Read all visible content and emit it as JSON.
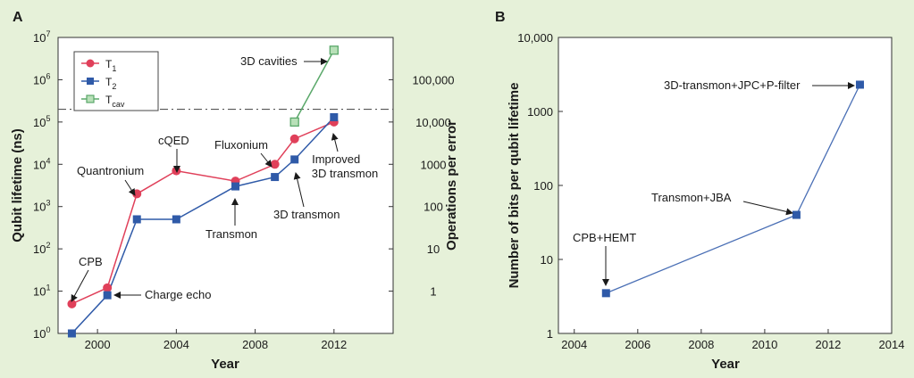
{
  "chart_data": [
    {
      "panel": "A",
      "type": "line",
      "xlabel": "Year",
      "ylabel": "Qubit lifetime (ns)",
      "ylabel_right": "Operations per error",
      "yscale": "log",
      "xlim": [
        1998,
        2015
      ],
      "ylim": [
        1,
        10000000
      ],
      "x_ticks": [
        "2000",
        "2004",
        "2008",
        "2012"
      ],
      "y_ticks": [
        {
          "base": "10",
          "exp": "0"
        },
        {
          "base": "10",
          "exp": "1"
        },
        {
          "base": "10",
          "exp": "2"
        },
        {
          "base": "10",
          "exp": "3"
        },
        {
          "base": "10",
          "exp": "4"
        },
        {
          "base": "10",
          "exp": "5"
        },
        {
          "base": "10",
          "exp": "6"
        },
        {
          "base": "10",
          "exp": "7"
        }
      ],
      "right_ticks": [
        "1",
        "10",
        "100",
        "1000",
        "10,000",
        "100,000"
      ],
      "threshold_line": 200000,
      "legend": [
        {
          "base": "T",
          "sub": "1",
          "color": "#e0405a"
        },
        {
          "base": "T",
          "sub": "2",
          "color": "#2f5aa8"
        },
        {
          "base": "T",
          "sub": "cav",
          "color": "#5aa86a"
        }
      ],
      "series": [
        {
          "name": "T1",
          "color": "#e0405a",
          "marker": "circle",
          "x": [
            1998.7,
            2000.5,
            2002,
            2004,
            2007,
            2009,
            2010,
            2012
          ],
          "y": [
            5,
            12,
            2000,
            7000,
            4000,
            10000,
            40000,
            100000
          ]
        },
        {
          "name": "T2",
          "color": "#2f5aa8",
          "marker": "square",
          "x": [
            1998.7,
            2000.5,
            2002,
            2004,
            2007,
            2009,
            2010,
            2012
          ],
          "y": [
            1,
            8,
            500,
            500,
            3000,
            5000,
            13000,
            130000
          ]
        },
        {
          "name": "Tcav",
          "color": "#5aa86a",
          "marker": "square-open",
          "x": [
            2010,
            2012
          ],
          "y": [
            100000,
            5000000
          ]
        }
      ],
      "annotations": [
        {
          "text": "CPB"
        },
        {
          "text": "Charge echo"
        },
        {
          "text": "Quantronium"
        },
        {
          "text": "cQED"
        },
        {
          "text": "Transmon"
        },
        {
          "text": "Fluxonium"
        },
        {
          "text": "3D cavities"
        },
        {
          "text": "3D transmon"
        },
        {
          "text": "Improved",
          "text2": "3D transmon"
        }
      ]
    },
    {
      "panel": "B",
      "type": "line",
      "xlabel": "Year",
      "ylabel": "Number of bits per qubit lifetime",
      "yscale": "log",
      "xlim": [
        2003.5,
        2014
      ],
      "ylim": [
        1,
        10000
      ],
      "x_ticks": [
        "2004",
        "2006",
        "2008",
        "2010",
        "2012",
        "2014"
      ],
      "y_ticks": [
        "1",
        "10",
        "100",
        "1000",
        "10,000"
      ],
      "series": [
        {
          "name": "",
          "color": "#2f5aa8",
          "marker": "square",
          "x": [
            2005,
            2011,
            2013
          ],
          "y": [
            3.5,
            40,
            2300
          ]
        }
      ],
      "annotations": [
        {
          "text": "CPB+HEMT"
        },
        {
          "text": "Transmon+JBA"
        },
        {
          "text": "3D-transmon+JPC+P-filter"
        }
      ]
    }
  ]
}
